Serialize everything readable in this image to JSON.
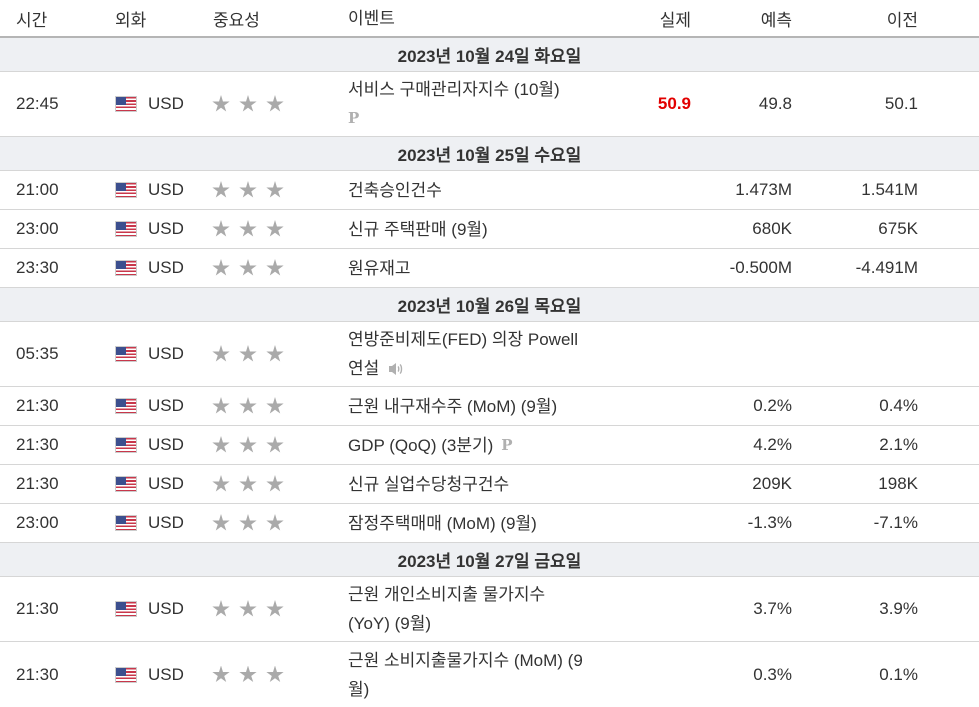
{
  "headers": {
    "time": "시간",
    "currency": "외화",
    "importance": "중요성",
    "event": "이벤트",
    "actual": "실제",
    "forecast": "예측",
    "previous": "이전"
  },
  "dates": [
    "2023년 10월 24일 화요일",
    "2023년 10월 25일 수요일",
    "2023년 10월 26일 목요일",
    "2023년 10월 27일 금요일"
  ],
  "events": [
    {
      "time": "22:45",
      "currency": "USD",
      "stars": 3,
      "event": "서비스 구매관리자지수 (10월)",
      "icon": "p-icon",
      "actual": "50.9",
      "forecast": "49.8",
      "previous": "50.1"
    },
    {
      "time": "21:00",
      "currency": "USD",
      "stars": 3,
      "event": "건축승인건수",
      "actual": "",
      "forecast": "1.473M",
      "previous": "1.541M"
    },
    {
      "time": "23:00",
      "currency": "USD",
      "stars": 3,
      "event": "신규 주택판매 (9월)",
      "actual": "",
      "forecast": "680K",
      "previous": "675K"
    },
    {
      "time": "23:30",
      "currency": "USD",
      "stars": 3,
      "event": "원유재고",
      "actual": "",
      "forecast": "-0.500M",
      "previous": "-4.491M"
    },
    {
      "time": "05:35",
      "currency": "USD",
      "stars": 3,
      "event_line1": "연방준비제도(FED) 의장 Powell",
      "event_line2": "연설",
      "icon": "speaker-icon",
      "actual": "",
      "forecast": "",
      "previous": ""
    },
    {
      "time": "21:30",
      "currency": "USD",
      "stars": 3,
      "event": "근원 내구재수주 (MoM) (9월)",
      "actual": "",
      "forecast": "0.2%",
      "previous": "0.4%"
    },
    {
      "time": "21:30",
      "currency": "USD",
      "stars": 3,
      "event": "GDP (QoQ) (3분기)",
      "icon": "p-icon",
      "actual": "",
      "forecast": "4.2%",
      "previous": "2.1%"
    },
    {
      "time": "21:30",
      "currency": "USD",
      "stars": 3,
      "event": "신규 실업수당청구건수",
      "actual": "",
      "forecast": "209K",
      "previous": "198K"
    },
    {
      "time": "23:00",
      "currency": "USD",
      "stars": 3,
      "event": "잠정주택매매 (MoM) (9월)",
      "actual": "",
      "forecast": "-1.3%",
      "previous": "-7.1%"
    },
    {
      "time": "21:30",
      "currency": "USD",
      "stars": 3,
      "event_line1": "근원 개인소비지출 물가지수",
      "event_line2": "(YoY) (9월)",
      "actual": "",
      "forecast": "3.7%",
      "previous": "3.9%"
    },
    {
      "time": "21:30",
      "currency": "USD",
      "stars": 3,
      "event_line1": "근원 소비지출물가지수 (MoM) (9",
      "event_line2": "월)",
      "actual": "",
      "forecast": "0.3%",
      "previous": "0.1%"
    }
  ],
  "icons": {
    "p": "P",
    "flag": "us-flag-icon",
    "star": "star-icon",
    "speaker": "speaker-icon"
  },
  "colors": {
    "actual_better": "#e20000",
    "date_band": "#eef0f3",
    "star": "#aaaaaa"
  }
}
